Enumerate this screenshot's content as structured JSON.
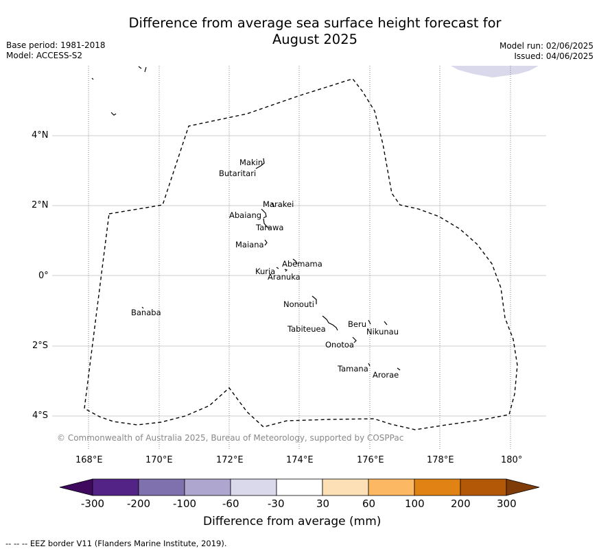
{
  "title_line1": "Difference from average sea surface height forecast for",
  "title_line2": "August 2025",
  "base_period": "Base period: 1981-2018",
  "model": "Model: ACCESS-S2",
  "model_run": "Model run: 02/06/2025",
  "issued": "Issued: 04/06/2025",
  "copyright": "© Commonwealth of Australia 2025, Bureau of Meteorology, supported by COSPPac",
  "footnote": "--  --  -- EEZ border V11 (Flanders Marine Institute, 2019).",
  "map": {
    "lon_ticks": [
      "168°E",
      "170°E",
      "172°E",
      "174°E",
      "176°E",
      "178°E",
      "180°"
    ],
    "lat_ticks": [
      "4°N",
      "2°N",
      "0°",
      "2°S",
      "4°S"
    ],
    "islands": [
      "Makin",
      "Butaritari",
      "Marakei",
      "Abaiang",
      "Tarawa",
      "Maiana",
      "Abemama",
      "Kuria",
      "Aranuka",
      "Banaba",
      "Nonouti",
      "Beru",
      "Nikunau",
      "Tabiteuea",
      "Onotoa",
      "Tamana",
      "Arorae"
    ]
  },
  "colorbar": {
    "title": "Difference from average (mm)",
    "tick_labels": [
      "-300",
      "-200",
      "-100",
      "-60",
      "-30",
      "30",
      "60",
      "100",
      "200",
      "300"
    ],
    "colors": [
      "#3f0a5e",
      "#532485",
      "#7f71ad",
      "#aea6cf",
      "#d9d9eb",
      "#ffffff",
      "#fee0b6",
      "#fdb863",
      "#e08214",
      "#b35806",
      "#7f3b08"
    ]
  }
}
